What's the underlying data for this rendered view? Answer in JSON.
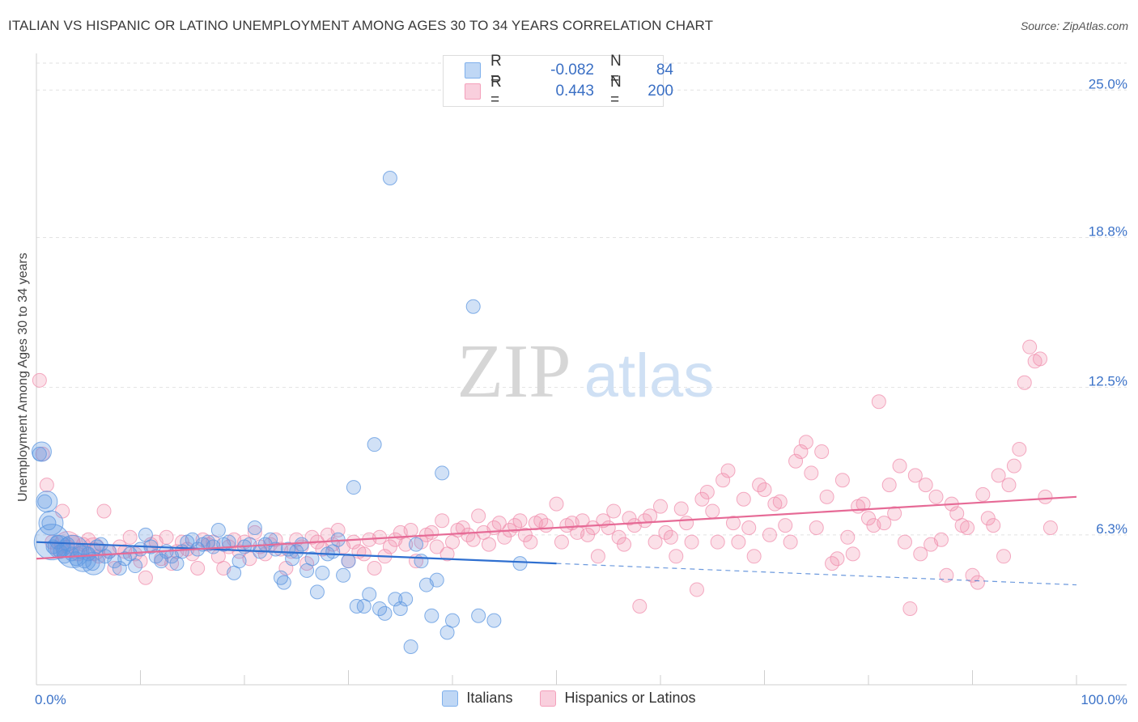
{
  "title": "ITALIAN VS HISPANIC OR LATINO UNEMPLOYMENT AMONG AGES 30 TO 34 YEARS CORRELATION CHART",
  "source": "Source: ZipAtlas.com",
  "watermark": {
    "zip": "ZIP",
    "atlas": "atlas"
  },
  "stats": {
    "r_label": "R =",
    "n_label": "N =",
    "rows": [
      {
        "r": "-0.082",
        "n": "84",
        "color": "#7fb0ec"
      },
      {
        "r": "0.443",
        "n": "200",
        "color": "#f4a0bb"
      }
    ]
  },
  "legend": [
    {
      "label": "Italians",
      "color": "#7fb0ec"
    },
    {
      "label": "Hispanics or Latinos",
      "color": "#f4a0bb"
    }
  ],
  "chart_data": {
    "type": "scatter",
    "title": "ITALIAN VS HISPANIC OR LATINO UNEMPLOYMENT AMONG AGES 30 TO 34 YEARS CORRELATION CHART",
    "xlabel": "",
    "ylabel": "Unemployment Among Ages 30 to 34 years",
    "xlim": [
      0,
      100
    ],
    "ylim": [
      0,
      26.2
    ],
    "x_tick_labels": [
      "0.0%",
      "100.0%"
    ],
    "y_ticks": [
      6.3,
      12.5,
      18.8,
      25.0
    ],
    "y_tick_labels": [
      "6.3%",
      "12.5%",
      "18.8%",
      "25.0%"
    ],
    "grid": true,
    "legend_position": "bottom",
    "colors": {
      "italians": "#5b95e0",
      "hispanics": "#f08fae",
      "italians_line": "#2e6fd0",
      "hispanics_line": "#e66a96"
    },
    "trendlines": [
      {
        "series": "Italians",
        "x": [
          0,
          50
        ],
        "y": [
          6.0,
          5.1
        ],
        "dashed_to": [
          100,
          4.2
        ]
      },
      {
        "series": "Hispanics or Latinos",
        "x": [
          0,
          100
        ],
        "y": [
          5.3,
          7.9
        ]
      }
    ],
    "series": [
      {
        "name": "Italians",
        "points": [
          [
            0.3,
            9.7
          ],
          [
            0.8,
            7.7
          ],
          [
            1.2,
            6.8
          ],
          [
            1.6,
            5.8
          ],
          [
            2.0,
            6.0
          ],
          [
            2.3,
            5.6
          ],
          [
            2.7,
            5.4
          ],
          [
            3.0,
            5.9
          ],
          [
            3.4,
            5.5
          ],
          [
            3.8,
            5.3
          ],
          [
            4.2,
            5.6
          ],
          [
            4.6,
            5.2
          ],
          [
            5.0,
            5.5
          ],
          [
            5.4,
            5.1
          ],
          [
            5.8,
            5.8
          ],
          [
            6.2,
            5.9
          ],
          [
            6.6,
            5.4
          ],
          [
            7.0,
            5.6
          ],
          [
            7.5,
            5.2
          ],
          [
            8.0,
            4.9
          ],
          [
            8.5,
            5.3
          ],
          [
            9.0,
            5.5
          ],
          [
            9.5,
            5.0
          ],
          [
            10.0,
            5.7
          ],
          [
            10.5,
            6.3
          ],
          [
            11.0,
            5.8
          ],
          [
            11.5,
            5.4
          ],
          [
            12.0,
            5.2
          ],
          [
            12.5,
            5.6
          ],
          [
            13.0,
            5.4
          ],
          [
            13.5,
            5.1
          ],
          [
            14.0,
            5.6
          ],
          [
            14.5,
            6.0
          ],
          [
            15.0,
            6.1
          ],
          [
            15.5,
            5.7
          ],
          [
            16.0,
            5.9
          ],
          [
            16.5,
            6.0
          ],
          [
            17.0,
            5.8
          ],
          [
            17.5,
            6.5
          ],
          [
            18.0,
            5.9
          ],
          [
            18.5,
            6.0
          ],
          [
            19.0,
            4.7
          ],
          [
            19.5,
            5.2
          ],
          [
            20.0,
            5.8
          ],
          [
            20.5,
            5.9
          ],
          [
            21.0,
            6.6
          ],
          [
            21.5,
            5.6
          ],
          [
            22.0,
            5.9
          ],
          [
            22.5,
            6.1
          ],
          [
            23.0,
            5.7
          ],
          [
            23.5,
            4.5
          ],
          [
            23.8,
            4.3
          ],
          [
            24.2,
            5.7
          ],
          [
            24.6,
            5.3
          ],
          [
            25.0,
            5.6
          ],
          [
            25.5,
            5.9
          ],
          [
            26.0,
            4.8
          ],
          [
            26.5,
            5.3
          ],
          [
            27.0,
            3.9
          ],
          [
            27.5,
            4.7
          ],
          [
            28.0,
            5.5
          ],
          [
            28.5,
            5.6
          ],
          [
            29.0,
            6.1
          ],
          [
            29.5,
            4.6
          ],
          [
            30.0,
            5.2
          ],
          [
            30.5,
            8.3
          ],
          [
            30.8,
            3.3
          ],
          [
            31.5,
            3.3
          ],
          [
            32.0,
            3.8
          ],
          [
            32.5,
            10.1
          ],
          [
            33.0,
            3.2
          ],
          [
            33.5,
            3.0
          ],
          [
            34.0,
            21.3
          ],
          [
            34.5,
            3.6
          ],
          [
            35.0,
            3.2
          ],
          [
            35.5,
            3.6
          ],
          [
            36.0,
            1.6
          ],
          [
            36.5,
            5.9
          ],
          [
            37.0,
            5.2
          ],
          [
            37.5,
            4.2
          ],
          [
            38.0,
            2.9
          ],
          [
            38.5,
            4.4
          ],
          [
            39.0,
            8.9
          ],
          [
            39.5,
            2.2
          ],
          [
            40.0,
            2.7
          ],
          [
            42.0,
            15.9
          ],
          [
            42.5,
            2.9
          ],
          [
            44.0,
            2.7
          ],
          [
            46.5,
            5.1
          ]
        ],
        "big": [
          [
            1.5,
            6.0,
            22
          ],
          [
            3.5,
            5.6,
            20
          ],
          [
            4.5,
            5.3,
            16
          ],
          [
            5.5,
            5.1,
            14
          ],
          [
            0.5,
            9.8,
            12
          ],
          [
            1.0,
            7.7,
            13
          ],
          [
            1.4,
            6.8,
            15
          ],
          [
            2.2,
            5.8,
            14
          ]
        ]
      },
      {
        "name": "Hispanics or Latinos",
        "points": [
          [
            0.3,
            12.8
          ],
          [
            0.6,
            9.7
          ],
          [
            1.0,
            8.4
          ],
          [
            1.5,
            6.0
          ],
          [
            2.0,
            5.7
          ],
          [
            2.5,
            7.3
          ],
          [
            3.0,
            5.8
          ],
          [
            3.5,
            6.0
          ],
          [
            4.0,
            5.5
          ],
          [
            4.5,
            5.9
          ],
          [
            5.0,
            6.1
          ],
          [
            5.5,
            5.7
          ],
          [
            6.0,
            5.4
          ],
          [
            6.5,
            7.3
          ],
          [
            7.0,
            5.6
          ],
          [
            7.5,
            4.9
          ],
          [
            8.0,
            5.8
          ],
          [
            8.5,
            5.6
          ],
          [
            9.0,
            6.2
          ],
          [
            9.5,
            5.5
          ],
          [
            10.0,
            5.2
          ],
          [
            10.5,
            4.5
          ],
          [
            11.0,
            5.9
          ],
          [
            11.5,
            6.0
          ],
          [
            12.0,
            5.3
          ],
          [
            12.5,
            6.2
          ],
          [
            13.0,
            5.1
          ],
          [
            13.5,
            5.6
          ],
          [
            14.0,
            6.0
          ],
          [
            14.5,
            5.7
          ],
          [
            15.0,
            5.5
          ],
          [
            15.5,
            4.9
          ],
          [
            16.0,
            6.1
          ],
          [
            16.5,
            5.9
          ],
          [
            17.0,
            6.0
          ],
          [
            17.5,
            5.4
          ],
          [
            18.0,
            4.9
          ],
          [
            18.5,
            5.8
          ],
          [
            19.0,
            6.1
          ],
          [
            19.5,
            5.6
          ],
          [
            20.0,
            6.0
          ],
          [
            20.5,
            5.3
          ],
          [
            21.0,
            6.4
          ],
          [
            21.5,
            5.8
          ],
          [
            22.0,
            5.5
          ],
          [
            22.5,
            5.9
          ],
          [
            23.0,
            6.1
          ],
          [
            23.5,
            5.7
          ],
          [
            24.0,
            4.9
          ],
          [
            24.5,
            5.6
          ],
          [
            25.0,
            6.1
          ],
          [
            25.5,
            5.8
          ],
          [
            26.0,
            5.1
          ],
          [
            26.5,
            6.2
          ],
          [
            27.0,
            6.0
          ],
          [
            27.5,
            5.7
          ],
          [
            28.0,
            6.3
          ],
          [
            28.5,
            5.9
          ],
          [
            29.0,
            6.5
          ],
          [
            29.5,
            5.8
          ],
          [
            30.0,
            5.2
          ],
          [
            30.5,
            6.0
          ],
          [
            31.0,
            5.6
          ],
          [
            31.5,
            5.5
          ],
          [
            32.0,
            6.1
          ],
          [
            32.5,
            4.9
          ],
          [
            33.0,
            6.2
          ],
          [
            33.5,
            5.4
          ],
          [
            34.0,
            5.8
          ],
          [
            34.5,
            6.1
          ],
          [
            35.0,
            6.4
          ],
          [
            35.5,
            5.9
          ],
          [
            36.0,
            6.5
          ],
          [
            36.5,
            5.2
          ],
          [
            37.0,
            6.0
          ],
          [
            37.5,
            6.3
          ],
          [
            38.0,
            6.4
          ],
          [
            38.5,
            5.8
          ],
          [
            39.0,
            6.9
          ],
          [
            39.5,
            5.5
          ],
          [
            40.0,
            6.0
          ],
          [
            40.5,
            6.5
          ],
          [
            41.0,
            6.6
          ],
          [
            41.5,
            6.3
          ],
          [
            42.0,
            6.1
          ],
          [
            42.5,
            7.1
          ],
          [
            43.0,
            6.4
          ],
          [
            43.5,
            5.9
          ],
          [
            44.0,
            6.6
          ],
          [
            44.5,
            6.8
          ],
          [
            45.0,
            6.2
          ],
          [
            45.5,
            6.5
          ],
          [
            46.0,
            6.7
          ],
          [
            46.5,
            6.9
          ],
          [
            47.0,
            6.3
          ],
          [
            47.5,
            6.0
          ],
          [
            48.0,
            6.8
          ],
          [
            48.5,
            6.9
          ],
          [
            49.0,
            6.7
          ],
          [
            50.0,
            7.6
          ],
          [
            50.5,
            6.0
          ],
          [
            51.0,
            6.7
          ],
          [
            51.5,
            6.8
          ],
          [
            52.0,
            6.4
          ],
          [
            52.5,
            6.9
          ],
          [
            53.0,
            6.3
          ],
          [
            53.5,
            6.6
          ],
          [
            54.0,
            5.4
          ],
          [
            54.5,
            6.9
          ],
          [
            55.0,
            6.6
          ],
          [
            55.5,
            7.3
          ],
          [
            56.0,
            6.2
          ],
          [
            56.5,
            5.9
          ],
          [
            57.0,
            7.0
          ],
          [
            57.5,
            6.7
          ],
          [
            58.0,
            3.3
          ],
          [
            58.5,
            6.9
          ],
          [
            59.0,
            7.1
          ],
          [
            59.5,
            6.0
          ],
          [
            60.0,
            7.5
          ],
          [
            60.5,
            6.4
          ],
          [
            61.0,
            6.2
          ],
          [
            61.5,
            5.4
          ],
          [
            62.0,
            7.4
          ],
          [
            62.5,
            6.8
          ],
          [
            63.0,
            6.0
          ],
          [
            63.5,
            4.0
          ],
          [
            64.0,
            7.8
          ],
          [
            64.5,
            8.1
          ],
          [
            65.0,
            7.3
          ],
          [
            65.5,
            6.0
          ],
          [
            66.0,
            8.6
          ],
          [
            66.5,
            9.0
          ],
          [
            67.0,
            6.8
          ],
          [
            67.5,
            6.0
          ],
          [
            68.0,
            7.8
          ],
          [
            68.5,
            6.6
          ],
          [
            69.0,
            5.4
          ],
          [
            69.5,
            8.4
          ],
          [
            70.0,
            8.2
          ],
          [
            70.5,
            6.3
          ],
          [
            71.0,
            7.6
          ],
          [
            71.5,
            7.7
          ],
          [
            72.0,
            6.7
          ],
          [
            72.5,
            6.0
          ],
          [
            73.0,
            9.4
          ],
          [
            73.5,
            9.8
          ],
          [
            74.0,
            10.2
          ],
          [
            74.5,
            8.9
          ],
          [
            75.0,
            6.6
          ],
          [
            75.5,
            9.8
          ],
          [
            76.0,
            7.9
          ],
          [
            76.5,
            5.1
          ],
          [
            77.0,
            5.3
          ],
          [
            77.5,
            8.6
          ],
          [
            78.0,
            6.2
          ],
          [
            78.5,
            5.5
          ],
          [
            79.0,
            7.5
          ],
          [
            79.5,
            7.6
          ],
          [
            80.0,
            7.0
          ],
          [
            80.5,
            6.7
          ],
          [
            81.0,
            11.9
          ],
          [
            81.5,
            6.8
          ],
          [
            82.0,
            8.4
          ],
          [
            82.5,
            7.2
          ],
          [
            83.0,
            9.2
          ],
          [
            83.5,
            6.0
          ],
          [
            84.0,
            3.2
          ],
          [
            84.5,
            8.8
          ],
          [
            85.0,
            5.5
          ],
          [
            85.5,
            8.4
          ],
          [
            86.0,
            5.9
          ],
          [
            86.5,
            7.9
          ],
          [
            87.0,
            6.1
          ],
          [
            87.5,
            4.6
          ],
          [
            88.0,
            7.6
          ],
          [
            88.5,
            7.2
          ],
          [
            89.0,
            6.7
          ],
          [
            89.5,
            6.6
          ],
          [
            90.0,
            4.6
          ],
          [
            90.5,
            4.3
          ],
          [
            91.0,
            8.0
          ],
          [
            91.5,
            7.0
          ],
          [
            92.0,
            6.7
          ],
          [
            92.5,
            8.8
          ],
          [
            93.0,
            5.4
          ],
          [
            93.5,
            8.4
          ],
          [
            94.0,
            9.2
          ],
          [
            94.5,
            9.9
          ],
          [
            95.0,
            12.7
          ],
          [
            95.5,
            14.2
          ],
          [
            96.0,
            13.6
          ],
          [
            96.5,
            13.7
          ],
          [
            97.0,
            7.9
          ],
          [
            97.5,
            6.6
          ]
        ],
        "big": [
          [
            3.0,
            5.9,
            16
          ],
          [
            5.5,
            5.7,
            14
          ]
        ]
      }
    ]
  }
}
